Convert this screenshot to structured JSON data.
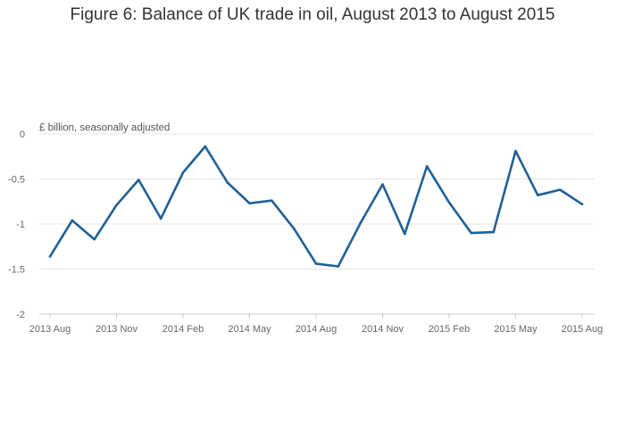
{
  "title": "Figure 6: Balance of UK trade in oil, August 2013 to August 2015",
  "chart_data": {
    "type": "line",
    "title": "Figure 6: Balance of UK trade in oil, August 2013 to August 2015",
    "ylabel": "£ billion, seasonally adjusted",
    "xlabel": "",
    "x": [
      "2013 Aug",
      "2013 Sep",
      "2013 Oct",
      "2013 Nov",
      "2013 Dec",
      "2014 Jan",
      "2014 Feb",
      "2014 Mar",
      "2014 Apr",
      "2014 May",
      "2014 Jun",
      "2014 Jul",
      "2014 Aug",
      "2014 Sep",
      "2014 Oct",
      "2014 Nov",
      "2014 Dec",
      "2015 Jan",
      "2015 Feb",
      "2015 Mar",
      "2015 Apr",
      "2015 May",
      "2015 Jun",
      "2015 Jul",
      "2015 Aug"
    ],
    "series": [
      {
        "color": "#206095",
        "values": [
          -1.36,
          -0.96,
          -1.17,
          -0.79,
          -0.51,
          -0.94,
          -0.43,
          -0.14,
          -0.54,
          -0.77,
          -0.74,
          -1.05,
          -1.44,
          -1.47,
          -0.99,
          -0.56,
          -1.11,
          -0.36,
          -0.76,
          -1.1,
          -1.09,
          -0.19,
          -0.68,
          -0.62,
          -0.78
        ]
      }
    ],
    "xticks": [
      "2013 Aug",
      "2013 Nov",
      "2014 Feb",
      "2014 May",
      "2014 Aug",
      "2014 Nov",
      "2015 Feb",
      "2015 May",
      "2015 Aug"
    ],
    "yticks": [
      0,
      -0.5,
      -1,
      -1.5,
      -2
    ],
    "ytick_labels": [
      "0",
      "-0.5",
      "-1",
      "-1.5",
      "-2"
    ],
    "ylim": [
      -2,
      0
    ],
    "grid": true,
    "legend": "none"
  }
}
